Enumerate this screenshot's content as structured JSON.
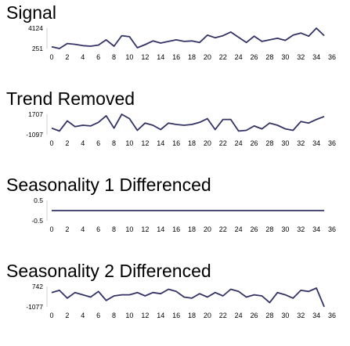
{
  "chart_data": [
    {
      "type": "line",
      "title": "Signal",
      "ylim": [
        251,
        4124
      ],
      "y_tick_labels": [
        "4124",
        "251"
      ],
      "x_tick_labels": [
        "0",
        "2",
        "4",
        "6",
        "8",
        "10",
        "12",
        "14",
        "16",
        "18",
        "20",
        "22",
        "24",
        "26",
        "28",
        "30",
        "32",
        "34",
        "36"
      ],
      "series": [
        {
          "color": "#333366",
          "x": [
            0,
            1,
            2,
            3,
            4,
            5,
            6,
            7,
            8,
            9,
            10,
            11,
            12,
            13,
            14,
            15,
            16,
            17,
            18,
            19,
            20,
            21,
            22,
            23,
            24,
            25,
            26,
            27,
            28,
            29,
            30,
            31,
            32,
            33,
            34,
            35
          ],
          "y": [
            600,
            251,
            1200,
            1050,
            800,
            700,
            900,
            1900,
            700,
            2700,
            2500,
            400,
            1000,
            1700,
            1300,
            1600,
            1900,
            1600,
            1700,
            1400,
            2800,
            2300,
            2700,
            3400,
            2400,
            1400,
            2600,
            1600,
            1900,
            2200,
            1800,
            2800,
            3200,
            2600,
            4124,
            2700
          ]
        }
      ]
    },
    {
      "type": "line",
      "title": "Trend Removed",
      "ylim": [
        -1097,
        1707
      ],
      "y_tick_labels": [
        "1707",
        "-1097"
      ],
      "x_tick_labels": [
        "0",
        "2",
        "4",
        "6",
        "8",
        "10",
        "12",
        "14",
        "16",
        "18",
        "20",
        "22",
        "24",
        "26",
        "28",
        "30",
        "32",
        "34",
        "36"
      ],
      "series": [
        {
          "color": "#333366",
          "x": [
            0,
            1,
            2,
            3,
            4,
            5,
            6,
            7,
            8,
            9,
            10,
            11,
            12,
            13,
            14,
            15,
            16,
            17,
            18,
            19,
            20,
            21,
            22,
            23,
            24,
            25,
            26,
            27,
            28,
            29,
            30,
            31,
            32,
            33,
            34,
            35
          ],
          "y": [
            -200,
            -600,
            800,
            0,
            200,
            100,
            600,
            1500,
            -200,
            1707,
            1100,
            -500,
            500,
            200,
            -400,
            500,
            300,
            200,
            300,
            600,
            1100,
            -400,
            1000,
            1000,
            -600,
            -500,
            100,
            -300,
            500,
            200,
            -300,
            -500,
            700,
            500,
            1000,
            1400
          ]
        }
      ]
    },
    {
      "type": "line",
      "title": "Seasonality 1 Differenced",
      "ylim": [
        -0.5,
        0.5
      ],
      "y_tick_labels": [
        "0.5",
        "-0.5"
      ],
      "x_tick_labels": [
        "0",
        "2",
        "4",
        "6",
        "8",
        "10",
        "12",
        "14",
        "16",
        "18",
        "20",
        "22",
        "24",
        "26",
        "28",
        "30",
        "32",
        "34",
        "36"
      ],
      "series": [
        {
          "color": "#333366",
          "x": [
            0,
            35
          ],
          "y": [
            0,
            0
          ]
        }
      ]
    },
    {
      "type": "line",
      "title": "Seasonality 2 Differenced",
      "ylim": [
        -1077,
        742
      ],
      "y_tick_labels": [
        "742",
        "-1077"
      ],
      "x_tick_labels": [
        "0",
        "2",
        "4",
        "6",
        "8",
        "10",
        "12",
        "14",
        "16",
        "18",
        "20",
        "22",
        "24",
        "26",
        "28",
        "30",
        "32",
        "34",
        "36"
      ],
      "series": [
        {
          "color": "#333366",
          "x": [
            0,
            1,
            2,
            3,
            4,
            5,
            6,
            7,
            8,
            9,
            10,
            11,
            12,
            13,
            14,
            15,
            16,
            17,
            18,
            19,
            20,
            21,
            22,
            23,
            24,
            25,
            26,
            27,
            28,
            29,
            30,
            31,
            32,
            33,
            34,
            35
          ],
          "y": [
            200,
            400,
            -300,
            200,
            0,
            -200,
            300,
            -500,
            -100,
            0,
            0,
            200,
            -100,
            200,
            100,
            500,
            300,
            -200,
            -300,
            100,
            -200,
            200,
            -100,
            500,
            300,
            -200,
            0,
            -100,
            -700,
            200,
            0,
            -300,
            400,
            300,
            600,
            -1077
          ]
        }
      ]
    }
  ]
}
